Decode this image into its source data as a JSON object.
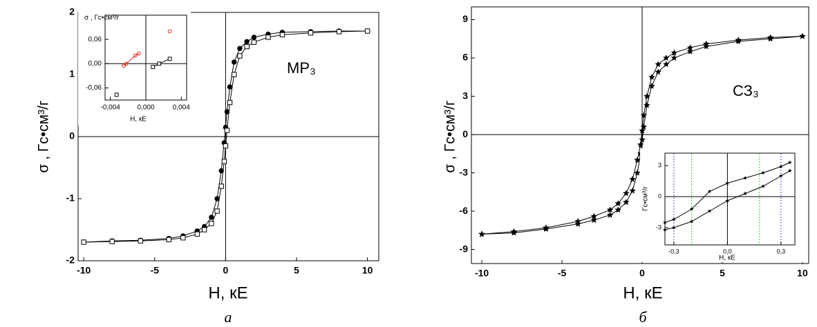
{
  "chart_data": [
    {
      "type": "line",
      "caption": "а",
      "xlabel": "Н, кЕ",
      "ylabel": "σ , Гс•см³/г",
      "annotation": "МР₃",
      "x": [
        -10,
        -8,
        -6,
        -4,
        -3,
        -2,
        -1.5,
        -1,
        -0.6,
        -0.3,
        -0.1,
        0,
        0.1,
        0.3,
        0.6,
        1,
        1.5,
        2,
        3,
        4,
        6,
        8,
        10
      ],
      "series": [
        {
          "color": "#000000",
          "marker": "circle",
          "values": [
            -1.7,
            -1.68,
            -1.67,
            -1.64,
            -1.6,
            -1.52,
            -1.45,
            -1.3,
            -1.0,
            -0.55,
            -0.1,
            0.15,
            0.4,
            0.8,
            1.2,
            1.42,
            1.53,
            1.6,
            1.65,
            1.68,
            1.69,
            1.7,
            1.7
          ]
        },
        {
          "color": "#000000",
          "marker": "square",
          "values": [
            -1.7,
            -1.69,
            -1.68,
            -1.66,
            -1.63,
            -1.57,
            -1.5,
            -1.4,
            -1.2,
            -0.8,
            -0.4,
            -0.15,
            0.1,
            0.55,
            1.0,
            1.3,
            1.45,
            1.52,
            1.6,
            1.64,
            1.67,
            1.69,
            1.7
          ]
        }
      ],
      "xlim": [
        -10.4,
        10.8
      ],
      "ylim": [
        -2,
        2
      ],
      "xticks": [
        -10,
        -5,
        0,
        5,
        10
      ],
      "yticks": [
        -2,
        -1,
        0,
        1,
        2
      ],
      "zero_lines": true
    },
    {
      "type": "line",
      "xlabel": "Н, кЕ",
      "ylabel": "σ , Гс•см³/г",
      "x": [
        -0.0033,
        -0.0025,
        -0.0022,
        -0.0012,
        -0.0008,
        0.0008,
        0.0015,
        0.0027
      ],
      "series": [
        {
          "color": "#e03020",
          "marker": "circle",
          "values": [
            null,
            -0.005,
            0.0,
            0.02,
            0.025,
            null,
            null,
            0.08
          ]
        },
        {
          "color": "#000000",
          "marker": "square",
          "values": [
            -0.077,
            null,
            null,
            null,
            null,
            -0.008,
            0.0,
            0.012
          ]
        }
      ],
      "xlim": [
        -0.0046,
        0.0046
      ],
      "ylim": [
        -0.09,
        0.12
      ],
      "xticks": [
        {
          "value": -0.004,
          "label": "-0,004"
        },
        {
          "value": 0,
          "label": "0,000"
        },
        {
          "value": 0.004,
          "label": "0,004"
        }
      ],
      "yticks": [
        {
          "value": -0.06,
          "label": "-0,06"
        },
        {
          "value": 0,
          "label": "0,00"
        },
        {
          "value": 0.06,
          "label": "0,06"
        }
      ],
      "zero_lines": true
    },
    {
      "type": "line",
      "caption": "б",
      "xlabel": "Н, кЕ",
      "ylabel": "σ , Гс•см³/г",
      "annotation": "СЗ₃",
      "x": [
        -10,
        -8,
        -6,
        -4,
        -3,
        -2,
        -1.5,
        -1,
        -0.6,
        -0.3,
        -0.1,
        0,
        0.1,
        0.3,
        0.6,
        1,
        1.5,
        2,
        3,
        4,
        6,
        8,
        10
      ],
      "series": [
        {
          "color": "#000000",
          "marker": "star",
          "values": [
            -7.8,
            -7.6,
            -7.3,
            -6.8,
            -6.4,
            -5.9,
            -5.4,
            -4.6,
            -3.5,
            -2.0,
            -0.8,
            0.3,
            1.5,
            3.0,
            4.5,
            5.5,
            6.0,
            6.4,
            6.8,
            7.1,
            7.4,
            7.6,
            7.7
          ]
        },
        {
          "color": "#000000",
          "marker": "star",
          "values": [
            -7.8,
            -7.7,
            -7.4,
            -7.0,
            -6.7,
            -6.3,
            -5.9,
            -5.3,
            -4.4,
            -3.0,
            -1.5,
            -0.4,
            0.6,
            2.3,
            3.8,
            4.9,
            5.5,
            6.0,
            6.5,
            6.9,
            7.3,
            7.5,
            7.7
          ]
        }
      ],
      "xlim": [
        -10.65,
        10.39
      ],
      "ylim": [
        -10.1,
        10.0
      ],
      "xticks": [
        -10,
        -5,
        0,
        5,
        10
      ],
      "yticks": [
        -9,
        -6,
        -3,
        0,
        3,
        6,
        9
      ],
      "zero_lines": true
    },
    {
      "type": "line",
      "xlabel": "Н, кЕ",
      "ylabel": "Гс•см³/г",
      "x": [
        -0.35,
        -0.3,
        -0.2,
        -0.1,
        0,
        0.1,
        0.2,
        0.3,
        0.35
      ],
      "series": [
        {
          "color": "#000000",
          "marker": "star",
          "values": [
            -2.5,
            -2.2,
            -1.2,
            0.5,
            1.3,
            1.8,
            2.3,
            2.9,
            3.3
          ]
        },
        {
          "color": "#000000",
          "marker": "star",
          "values": [
            -3.2,
            -3.0,
            -2.4,
            -1.4,
            -0.4,
            0.3,
            1.0,
            2.0,
            2.5
          ]
        }
      ],
      "xlim": [
        -0.35,
        0.378
      ],
      "ylim": [
        -4.67,
        4.2
      ],
      "xticks": [
        {
          "value": -0.3,
          "label": "-0,3"
        },
        {
          "value": 0,
          "label": "0,0"
        },
        {
          "value": 0.3,
          "label": "0,3"
        }
      ],
      "yticks": [
        -3,
        0,
        3
      ],
      "zero_lines": true,
      "reference_lines": [
        {
          "x": -0.3,
          "color": "#4455dd"
        },
        {
          "x": -0.2,
          "color": "#33cc33"
        },
        {
          "x": 0.18,
          "color": "#33cc33"
        },
        {
          "x": 0.3,
          "color": "#4455dd"
        }
      ]
    }
  ]
}
